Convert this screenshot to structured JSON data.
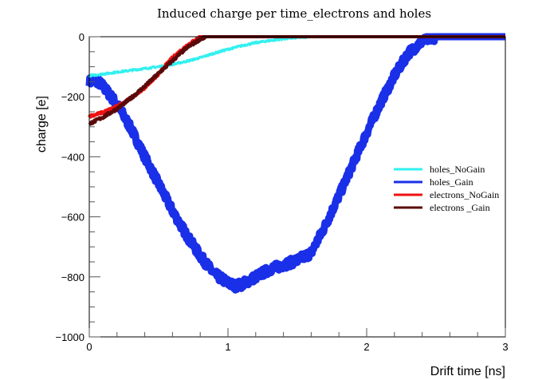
{
  "chart_data": {
    "type": "line",
    "title": "Induced charge per time_electrons and holes",
    "xlabel": "Drift time [ns]",
    "ylabel": "charge [e]",
    "xlim": [
      0,
      3
    ],
    "ylim": [
      -1000,
      0
    ],
    "xticks": [
      0,
      1,
      2,
      3
    ],
    "xtick_labels": [
      "0",
      "1",
      "2",
      "3"
    ],
    "yticks": [
      0,
      -200,
      -400,
      -600,
      -800,
      -1000
    ],
    "ytick_labels": [
      "0",
      "−200",
      "−400",
      "−600",
      "−800",
      "−1000"
    ],
    "grid": false,
    "legend_position": "right",
    "series": [
      {
        "name": "holes_NoGain",
        "color": "#33f0f0",
        "x": [
          0,
          0.2,
          0.4,
          0.5,
          0.6,
          0.7,
          0.8,
          0.9,
          1.0,
          1.1,
          1.2,
          1.3,
          1.4,
          1.5,
          1.6,
          2.0,
          3.0
        ],
        "y": [
          -130,
          -118,
          -106,
          -100,
          -92,
          -82,
          -70,
          -55,
          -42,
          -30,
          -20,
          -13,
          -7,
          -3,
          0,
          0,
          0
        ]
      },
      {
        "name": "holes_Gain",
        "color": "#1a2fe8",
        "x": [
          0,
          0.05,
          0.1,
          0.2,
          0.3,
          0.4,
          0.5,
          0.6,
          0.7,
          0.8,
          0.9,
          1.0,
          1.05,
          1.1,
          1.2,
          1.3,
          1.4,
          1.5,
          1.6,
          1.7,
          1.8,
          1.9,
          2.0,
          2.1,
          2.2,
          2.3,
          2.4,
          2.5,
          3.0
        ],
        "y": [
          -150,
          -145,
          -165,
          -225,
          -305,
          -400,
          -490,
          -580,
          -660,
          -730,
          -790,
          -820,
          -830,
          -825,
          -800,
          -775,
          -760,
          -745,
          -720,
          -630,
          -530,
          -425,
          -320,
          -220,
          -130,
          -55,
          -15,
          0,
          0
        ]
      },
      {
        "name": "electrons_NoGain",
        "color": "#ee1111",
        "x": [
          0,
          0.1,
          0.2,
          0.3,
          0.4,
          0.5,
          0.55,
          0.6,
          0.7,
          0.8,
          3.0
        ],
        "y": [
          -265,
          -252,
          -232,
          -205,
          -170,
          -125,
          -95,
          -70,
          -30,
          0,
          0
        ]
      },
      {
        "name": "electrons _Gain",
        "color": "#5a0a0a",
        "x": [
          0,
          0.1,
          0.2,
          0.3,
          0.4,
          0.5,
          0.6,
          0.7,
          0.8,
          0.85,
          3.0
        ],
        "y": [
          -290,
          -268,
          -240,
          -205,
          -165,
          -122,
          -80,
          -38,
          -8,
          0,
          0
        ]
      }
    ]
  }
}
